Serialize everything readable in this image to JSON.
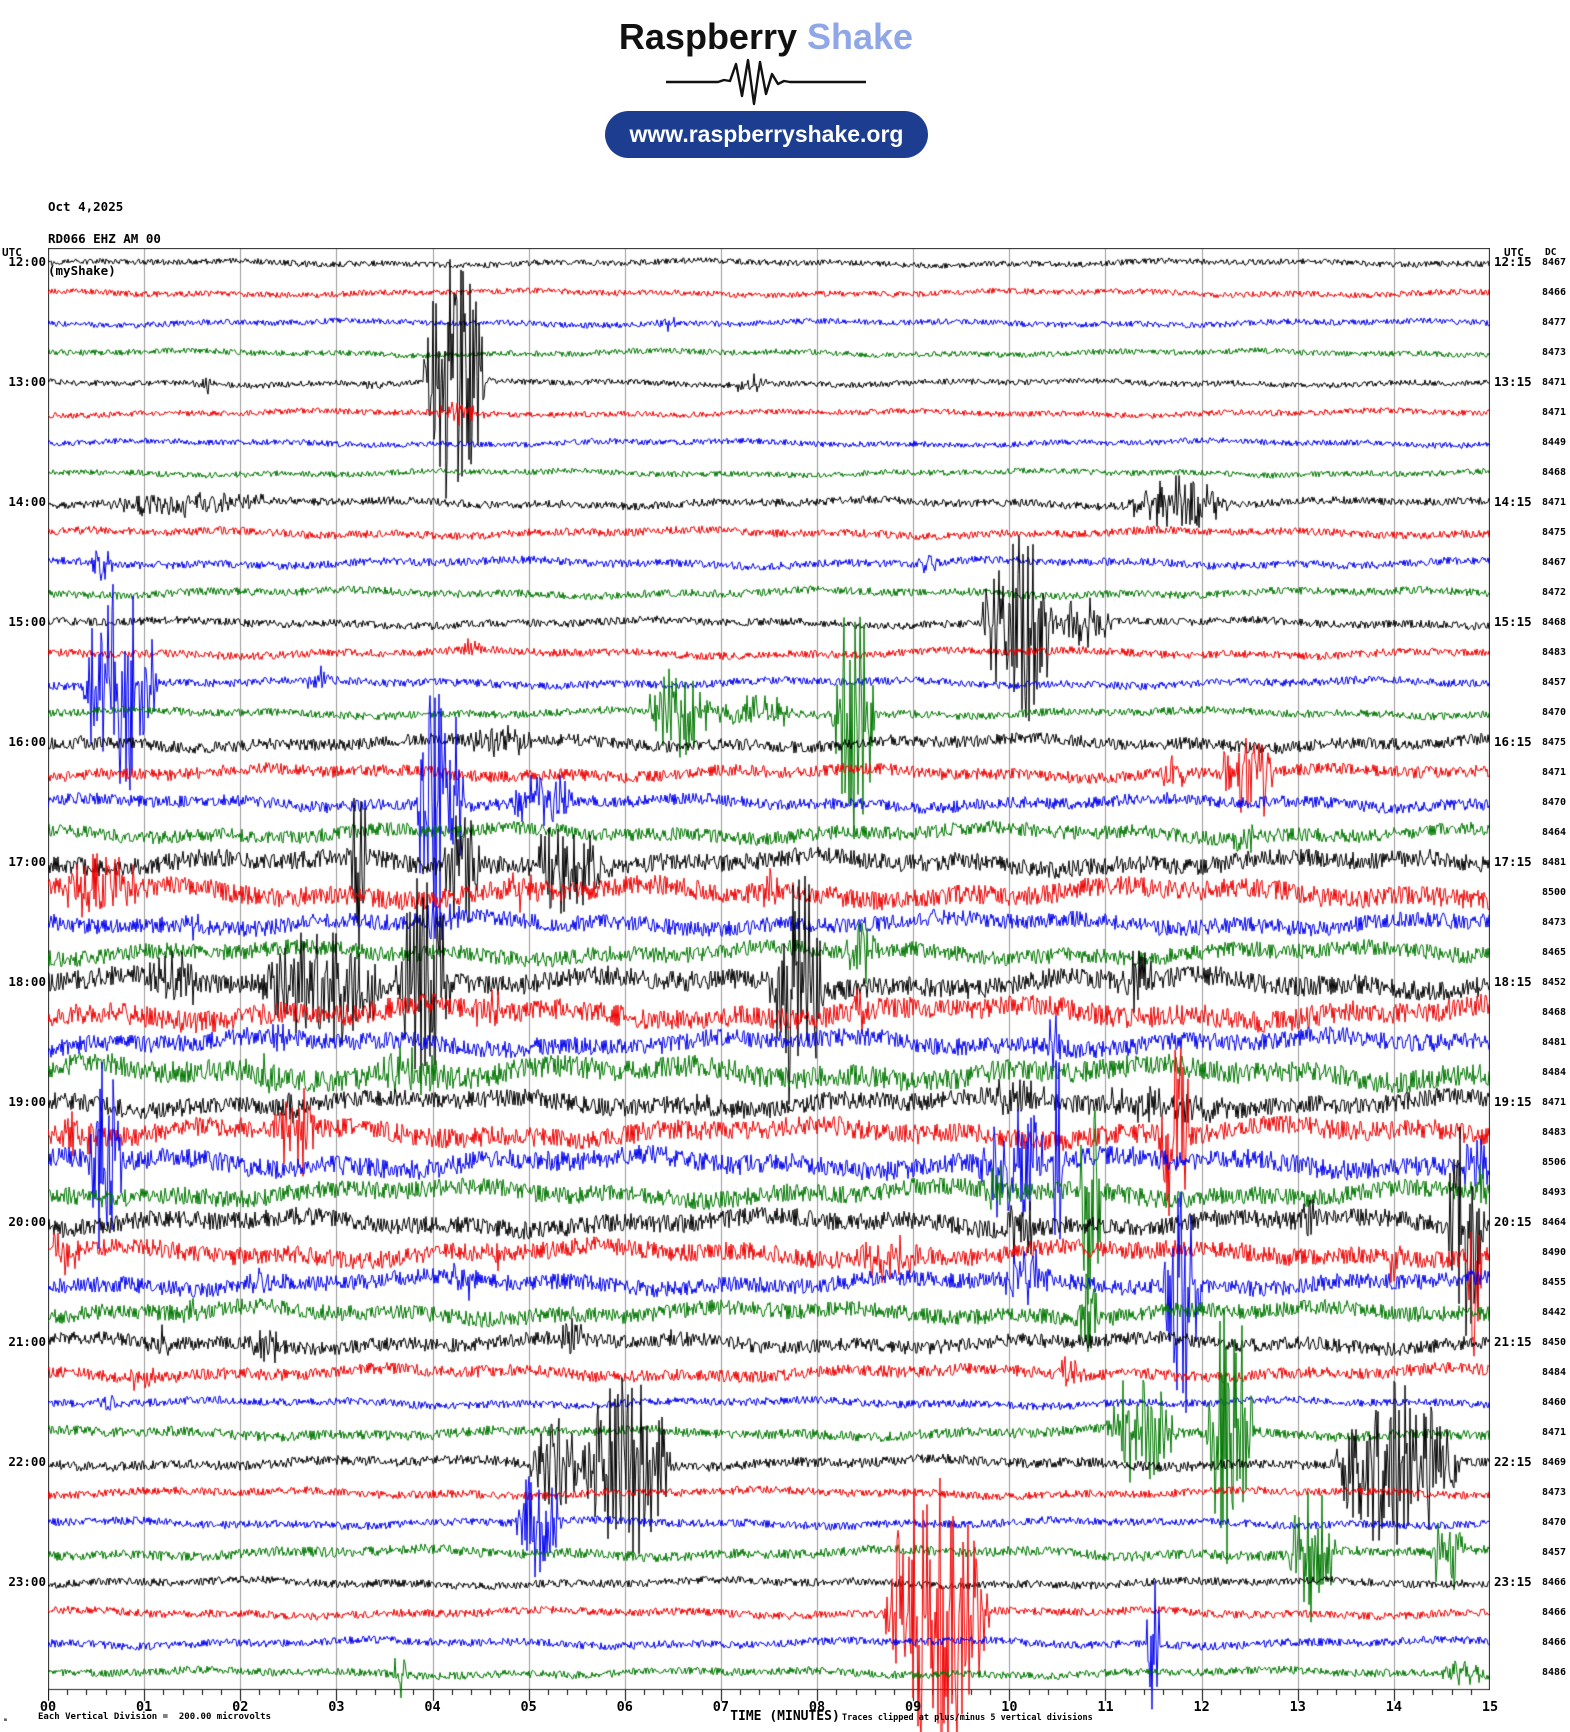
{
  "header": {
    "brand_black": "Raspberry",
    "brand_blue": " Shake",
    "url": "www.raspberryshake.org"
  },
  "station": {
    "date": "Oct 4,2025",
    "code": "RD066 EHZ AM 00",
    "network": "(myShake)"
  },
  "colors": {
    "brand_accent": "#8fa7e6",
    "pill_bg": "#1d3d91",
    "grid": "#9a9a9a",
    "box_border": "#222222",
    "trace_cycle": [
      "#000000",
      "#ee0000",
      "#0000ee",
      "#007700"
    ]
  },
  "y_axis": {
    "left_header": "UTC",
    "right_header": "UTC",
    "dc_header": "DC",
    "left_hours": [
      "12:00",
      "13:00",
      "14:00",
      "15:00",
      "16:00",
      "17:00",
      "18:00",
      "19:00",
      "20:00",
      "21:00",
      "22:00",
      "23:00"
    ],
    "right_hours": [
      "12:15",
      "13:15",
      "14:15",
      "15:15",
      "16:15",
      "17:15",
      "18:15",
      "19:15",
      "20:15",
      "21:15",
      "22:15",
      "23:15"
    ]
  },
  "x_axis": {
    "title": "TIME (MINUTES)",
    "labels": [
      "00",
      "01",
      "02",
      "03",
      "04",
      "05",
      "06",
      "07",
      "08",
      "09",
      "10",
      "11",
      "12",
      "13",
      "14",
      "15"
    ],
    "minutes_per_line": 15,
    "minor_ticks_per_major": 5
  },
  "footer": {
    "left_note": "Each Vertical Division =  200.00 microvolts",
    "right_note": "Traces clipped at plus/minus 5 vertical divisions",
    "corner_glyph": "ₘ"
  },
  "chart_data": {
    "type": "line",
    "title": "Helicorder RD066 EHZ AM 00 (myShake) Oct 4,2025",
    "x_range_minutes": [
      0,
      15
    ],
    "rows_per_hour": 4,
    "row_interval_minutes": 15,
    "first_row_utc": "12:00",
    "last_row_utc": "23:45",
    "division_microvolts": 200,
    "clip_divisions": 5,
    "legend": "rows cycle colors black(:00), red(:15), blue(:30), green(:45); events listed as [start_min, end_min, amplitude]",
    "rows": [
      {
        "dc": 8467,
        "noise": 3,
        "events": []
      },
      {
        "dc": 8466,
        "noise": 3,
        "events": []
      },
      {
        "dc": 8477,
        "noise": 3,
        "events": [
          [
            6.3,
            6.55,
            7
          ]
        ]
      },
      {
        "dc": 8473,
        "noise": 3,
        "events": []
      },
      {
        "dc": 8471,
        "noise": 3,
        "events": [
          [
            1.5,
            1.75,
            8
          ],
          [
            3.3,
            3.5,
            5
          ],
          [
            3.9,
            4.55,
            140
          ],
          [
            7.1,
            7.5,
            9
          ]
        ]
      },
      {
        "dc": 8471,
        "noise": 3,
        "events": [
          [
            4.0,
            4.6,
            12
          ]
        ]
      },
      {
        "dc": 8449,
        "noise": 3,
        "events": []
      },
      {
        "dc": 8468,
        "noise": 3,
        "events": []
      },
      {
        "dc": 8471,
        "noise": 4,
        "events": [
          [
            0.6,
            2.3,
            12
          ],
          [
            11.2,
            12.3,
            26
          ]
        ]
      },
      {
        "dc": 8475,
        "noise": 4,
        "events": []
      },
      {
        "dc": 8467,
        "noise": 4,
        "events": [
          [
            0.45,
            0.7,
            22
          ],
          [
            9.0,
            9.3,
            9
          ]
        ]
      },
      {
        "dc": 8472,
        "noise": 4,
        "events": []
      },
      {
        "dc": 8468,
        "noise": 4,
        "events": [
          [
            9.7,
            10.5,
            100
          ],
          [
            10.5,
            11.1,
            28
          ]
        ]
      },
      {
        "dc": 8483,
        "noise": 4,
        "events": [
          [
            4.3,
            4.5,
            8
          ]
        ]
      },
      {
        "dc": 8457,
        "noise": 4,
        "events": [
          [
            0.35,
            1.15,
            120
          ],
          [
            2.6,
            2.95,
            12
          ]
        ]
      },
      {
        "dc": 8470,
        "noise": 4,
        "events": [
          [
            6.2,
            6.9,
            45
          ],
          [
            6.9,
            7.8,
            18
          ],
          [
            8.15,
            8.6,
            140
          ]
        ]
      },
      {
        "dc": 8475,
        "noise": 6,
        "events": [
          [
            0.3,
            0.5,
            9
          ],
          [
            4.3,
            5.1,
            16
          ]
        ]
      },
      {
        "dc": 8471,
        "noise": 6,
        "events": [
          [
            11.5,
            11.9,
            14
          ],
          [
            12.2,
            12.75,
            60
          ]
        ]
      },
      {
        "dc": 8470,
        "noise": 6,
        "events": [
          [
            3.8,
            4.35,
            135
          ],
          [
            4.8,
            5.5,
            25
          ]
        ]
      },
      {
        "dc": 8464,
        "noise": 7,
        "events": [
          [
            12.3,
            12.6,
            16
          ]
        ]
      },
      {
        "dc": 8481,
        "noise": 9,
        "events": [
          [
            3.15,
            3.32,
            100
          ],
          [
            4.1,
            4.5,
            60
          ],
          [
            5.0,
            5.8,
            45
          ]
        ]
      },
      {
        "dc": 8500,
        "noise": 10,
        "events": [
          [
            0.1,
            1.0,
            30
          ],
          [
            4.7,
            5.2,
            18
          ],
          [
            7.4,
            7.6,
            25
          ]
        ]
      },
      {
        "dc": 8473,
        "noise": 8,
        "events": [
          [
            1.3,
            1.6,
            12
          ],
          [
            3.9,
            4.3,
            20
          ]
        ]
      },
      {
        "dc": 8465,
        "noise": 8,
        "events": [
          [
            8.3,
            8.65,
            30
          ]
        ]
      },
      {
        "dc": 8452,
        "noise": 10,
        "events": [
          [
            1.0,
            1.6,
            28
          ],
          [
            2.2,
            3.5,
            60
          ],
          [
            3.6,
            4.2,
            110
          ],
          [
            7.5,
            8.1,
            120
          ],
          [
            11.1,
            11.5,
            30
          ]
        ]
      },
      {
        "dc": 8468,
        "noise": 11,
        "events": [
          [
            4.4,
            4.75,
            15
          ],
          [
            8.3,
            8.55,
            25
          ]
        ]
      },
      {
        "dc": 8481,
        "noise": 9,
        "events": [
          [
            2.3,
            2.55,
            12
          ],
          [
            10.4,
            10.55,
            40
          ]
        ]
      },
      {
        "dc": 8484,
        "noise": 11,
        "events": [
          [
            0.5,
            0.75,
            20
          ],
          [
            2.0,
            2.5,
            16
          ],
          [
            3.3,
            4.3,
            20
          ]
        ]
      },
      {
        "dc": 8471,
        "noise": 9,
        "events": [
          [
            2.4,
            2.65,
            12
          ],
          [
            6.6,
            7.0,
            12
          ],
          [
            9.8,
            10.4,
            22
          ],
          [
            10.8,
            12.3,
            14
          ]
        ]
      },
      {
        "dc": 8483,
        "noise": 10,
        "events": [
          [
            0.1,
            0.55,
            25
          ],
          [
            2.3,
            2.85,
            42
          ],
          [
            11.55,
            11.9,
            100
          ]
        ]
      },
      {
        "dc": 8506,
        "noise": 10,
        "events": [
          [
            0.42,
            0.78,
            115
          ],
          [
            9.6,
            10.45,
            60
          ],
          [
            10.45,
            10.56,
            130
          ],
          [
            14.7,
            15,
            30
          ]
        ]
      },
      {
        "dc": 8493,
        "noise": 9,
        "events": [
          [
            9.7,
            10.05,
            25
          ],
          [
            10.72,
            10.97,
            135
          ],
          [
            14.8,
            15,
            20
          ]
        ]
      },
      {
        "dc": 8464,
        "noise": 9,
        "events": [
          [
            9.9,
            10.3,
            30
          ],
          [
            13.0,
            13.3,
            20
          ],
          [
            14.55,
            14.95,
            140
          ]
        ]
      },
      {
        "dc": 8490,
        "noise": 9,
        "events": [
          [
            0.0,
            0.35,
            25
          ],
          [
            4.5,
            4.75,
            15
          ],
          [
            8.4,
            9.05,
            22
          ],
          [
            13.85,
            14.1,
            20
          ],
          [
            14.75,
            14.92,
            120
          ]
        ]
      },
      {
        "dc": 8455,
        "noise": 8,
        "events": [
          [
            2.0,
            2.35,
            12
          ],
          [
            4.1,
            4.5,
            15
          ],
          [
            9.9,
            10.45,
            25
          ],
          [
            11.6,
            12.0,
            130
          ]
        ]
      },
      {
        "dc": 8442,
        "noise": 8,
        "events": [
          [
            1.4,
            1.65,
            12
          ],
          [
            10.7,
            10.95,
            45
          ]
        ]
      },
      {
        "dc": 8450,
        "noise": 7,
        "events": [
          [
            1.0,
            1.35,
            15
          ],
          [
            2.1,
            2.45,
            15
          ],
          [
            5.3,
            5.6,
            20
          ],
          [
            6.4,
            6.65,
            10
          ]
        ]
      },
      {
        "dc": 8484,
        "noise": 6,
        "events": [
          [
            0.8,
            1.15,
            20
          ],
          [
            10.5,
            10.8,
            15
          ]
        ]
      },
      {
        "dc": 8460,
        "noise": 4,
        "events": [
          [
            0.5,
            0.7,
            10
          ]
        ]
      },
      {
        "dc": 8471,
        "noise": 5,
        "events": [
          [
            11.0,
            11.75,
            60
          ],
          [
            12.05,
            12.55,
            140
          ]
        ]
      },
      {
        "dc": 8469,
        "noise": 5,
        "events": [
          [
            5.0,
            5.55,
            45
          ],
          [
            5.55,
            6.5,
            95
          ],
          [
            13.35,
            14.7,
            90
          ]
        ]
      },
      {
        "dc": 8473,
        "noise": 4,
        "events": []
      },
      {
        "dc": 8470,
        "noise": 4,
        "events": [
          [
            4.85,
            5.35,
            60
          ]
        ]
      },
      {
        "dc": 8457,
        "noise": 5,
        "events": [
          [
            12.9,
            13.4,
            70
          ],
          [
            14.35,
            14.75,
            40
          ]
        ]
      },
      {
        "dc": 8466,
        "noise": 4,
        "events": []
      },
      {
        "dc": 8466,
        "noise": 4,
        "events": [
          [
            8.7,
            9.8,
            150
          ]
        ]
      },
      {
        "dc": 8466,
        "noise": 4,
        "events": [
          [
            11.42,
            11.58,
            90
          ]
        ]
      },
      {
        "dc": 8486,
        "noise": 4,
        "events": [
          [
            3.6,
            3.72,
            35
          ],
          [
            14.5,
            14.95,
            12
          ]
        ]
      }
    ]
  }
}
